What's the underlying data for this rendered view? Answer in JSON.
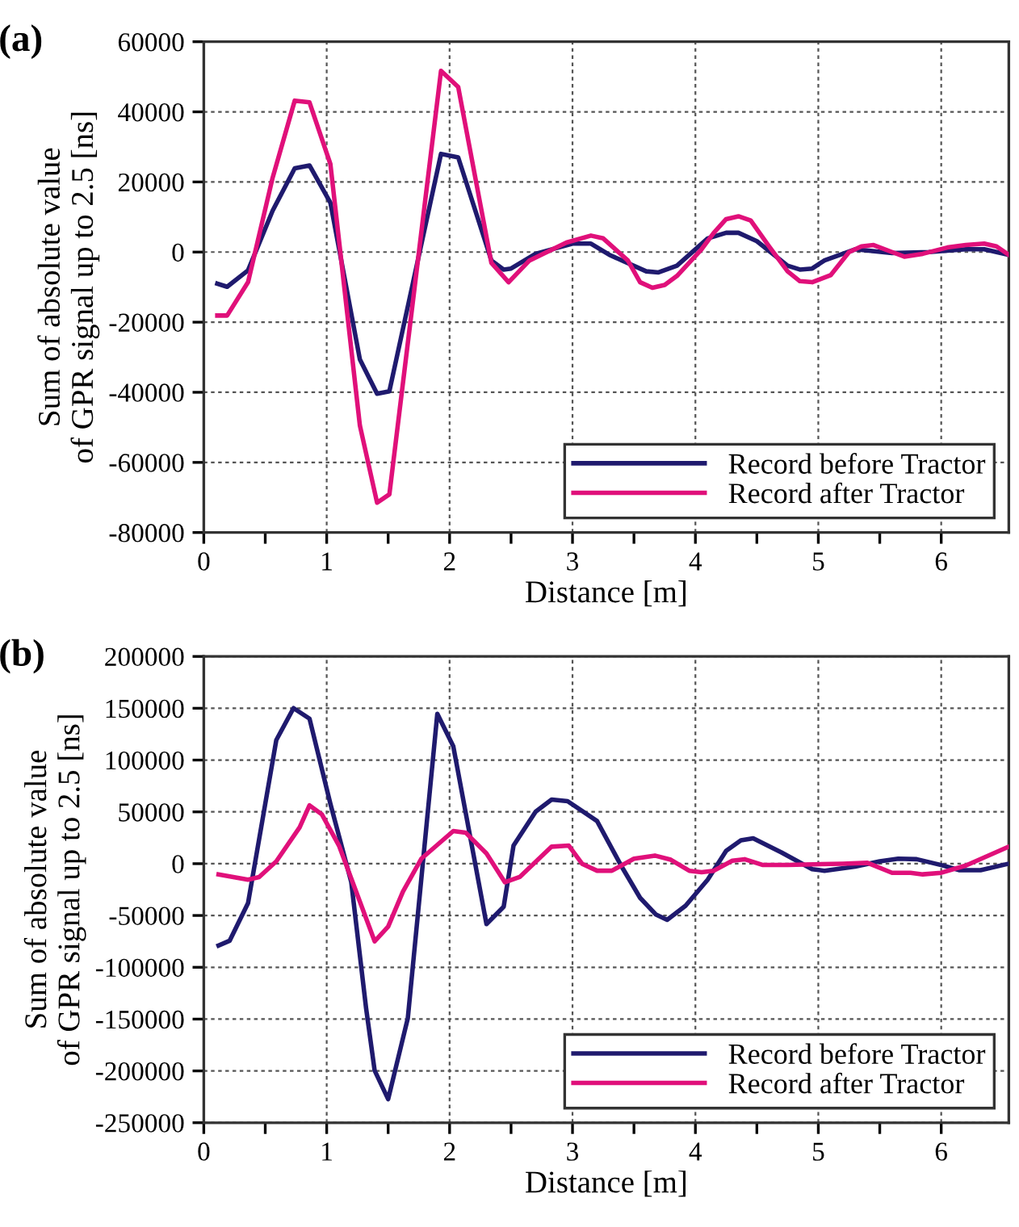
{
  "chart_data": [
    {
      "type": "line",
      "title": "(a)",
      "xlabel": "Distance [m]",
      "ylabel": "Sum of absolute value\nof GPR signal up to 2.5 [ns]",
      "xlim": [
        0,
        6.55
      ],
      "ylim": [
        -80000,
        60000
      ],
      "xticks": [
        0,
        {
          "value": 0.5,
          "label": null
        },
        1,
        {
          "value": 1.5,
          "label": null
        },
        2,
        {
          "value": 2.5,
          "label": null
        },
        3,
        {
          "value": 3.5,
          "label": null
        },
        4,
        {
          "value": 4.5,
          "label": null
        },
        5,
        {
          "value": 5.5,
          "label": null
        },
        6
      ],
      "yticks": [
        -80000,
        -60000,
        -40000,
        -20000,
        0,
        20000,
        40000,
        60000
      ],
      "grid": true,
      "legend": "bottom right",
      "line_style": "solid",
      "marker": "none",
      "series": [
        {
          "name": "Record before Tractor",
          "color": "#1f1a6e",
          "x": [
            0.11,
            0.19,
            0.36,
            0.56,
            0.74,
            0.86,
            1.03,
            1.27,
            1.41,
            1.51,
            1.93,
            2.07,
            2.34,
            2.44,
            2.5,
            2.7,
            3.0,
            3.15,
            3.3,
            3.6,
            3.7,
            3.85,
            4.1,
            4.25,
            4.35,
            4.5,
            4.75,
            4.85,
            4.95,
            5.05,
            5.3,
            5.6,
            5.9,
            6.2,
            6.35,
            6.55
          ],
          "values": [
            -9000,
            -9900,
            -5200,
            11800,
            23900,
            24700,
            14100,
            -30600,
            -40400,
            -39700,
            28000,
            27000,
            -2400,
            -5000,
            -4700,
            -500,
            2400,
            2400,
            -800,
            -5500,
            -5800,
            -3900,
            3900,
            5500,
            5500,
            3100,
            -3900,
            -5000,
            -4700,
            -2400,
            800,
            -300,
            0,
            800,
            800,
            -800
          ]
        },
        {
          "name": "Record after Tractor",
          "color": "#e0107a",
          "x": [
            0.11,
            0.19,
            0.36,
            0.56,
            0.74,
            0.86,
            1.03,
            1.27,
            1.41,
            1.51,
            1.93,
            2.07,
            2.34,
            2.48,
            2.65,
            2.95,
            3.15,
            3.25,
            3.45,
            3.55,
            3.65,
            3.75,
            3.85,
            4.05,
            4.15,
            4.25,
            4.35,
            4.45,
            4.6,
            4.75,
            4.85,
            4.95,
            5.1,
            5.25,
            5.35,
            5.45,
            5.6,
            5.7,
            5.85,
            6.05,
            6.2,
            6.35,
            6.45,
            6.55
          ],
          "values": [
            -18100,
            -18100,
            -8600,
            21200,
            43200,
            42700,
            25100,
            -49500,
            -71500,
            -69100,
            51700,
            47100,
            -3100,
            -8600,
            -2400,
            2700,
            4700,
            3900,
            -2400,
            -8600,
            -10200,
            -9400,
            -6800,
            800,
            5500,
            9400,
            10200,
            9000,
            1600,
            -5500,
            -8300,
            -8600,
            -6600,
            0,
            1600,
            2000,
            0,
            -1300,
            -500,
            1300,
            2000,
            2400,
            1600,
            -800
          ]
        }
      ]
    },
    {
      "type": "line",
      "title": "(b)",
      "xlabel": "Distance [m]",
      "ylabel": "Sum of absolute value\nof GPR signal up to 2.5 [ns]",
      "xlim": [
        0,
        6.55
      ],
      "ylim": [
        -250000,
        200000
      ],
      "xticks": [
        0,
        {
          "value": 0.5,
          "label": null
        },
        1,
        {
          "value": 1.5,
          "label": null
        },
        2,
        {
          "value": 2.5,
          "label": null
        },
        3,
        {
          "value": 3.5,
          "label": null
        },
        4,
        {
          "value": 4.5,
          "label": null
        },
        5,
        {
          "value": 5.5,
          "label": null
        },
        6
      ],
      "yticks": [
        -250000,
        -200000,
        -150000,
        -100000,
        -50000,
        0,
        50000,
        100000,
        150000,
        200000
      ],
      "grid": true,
      "legend": "bottom right",
      "line_style": "solid",
      "marker": "none",
      "series": [
        {
          "name": "Record before Tractor",
          "color": "#1f1a6e",
          "x": [
            0.12,
            0.21,
            0.36,
            0.59,
            0.73,
            0.86,
            1.03,
            1.2,
            1.32,
            1.39,
            1.5,
            1.66,
            1.9,
            2.03,
            2.3,
            2.44,
            2.52,
            2.7,
            2.83,
            2.96,
            3.2,
            3.4,
            3.55,
            3.68,
            3.77,
            3.92,
            4.1,
            4.25,
            4.37,
            4.47,
            4.7,
            4.95,
            5.05,
            5.3,
            5.5,
            5.65,
            5.8,
            6.0,
            6.15,
            6.32,
            6.55
          ],
          "values": [
            -79000,
            -74400,
            -38100,
            119300,
            150100,
            140000,
            57800,
            -17900,
            -139000,
            -199600,
            -227300,
            -149100,
            144600,
            113300,
            -58300,
            -41600,
            17400,
            50200,
            61800,
            60300,
            41100,
            -2800,
            -33000,
            -49200,
            -54200,
            -40600,
            -15400,
            12400,
            22500,
            24500,
            10800,
            -5300,
            -6800,
            -2800,
            2300,
            4800,
            4300,
            -1300,
            -6300,
            -6300,
            0
          ]
        },
        {
          "name": "Record after Tractor",
          "color": "#e0107a",
          "x": [
            0.12,
            0.36,
            0.45,
            0.59,
            0.78,
            0.86,
            0.96,
            1.1,
            1.39,
            1.5,
            1.62,
            1.77,
            2.03,
            2.13,
            2.3,
            2.45,
            2.57,
            2.83,
            2.97,
            3.08,
            3.2,
            3.32,
            3.5,
            3.67,
            3.8,
            3.95,
            4.05,
            4.15,
            4.3,
            4.4,
            4.55,
            4.75,
            5.2,
            5.4,
            5.6,
            5.75,
            5.85,
            6.0,
            6.2,
            6.55
          ],
          "values": [
            -10300,
            -15400,
            -12900,
            2300,
            35100,
            56300,
            47700,
            17400,
            -74900,
            -60800,
            -27000,
            4800,
            31500,
            30000,
            9800,
            -17900,
            -12900,
            16400,
            17400,
            -300,
            -6800,
            -6800,
            4800,
            7800,
            3800,
            -6800,
            -8300,
            -6800,
            2800,
            4300,
            -1300,
            -1300,
            0,
            800,
            -8800,
            -8800,
            -10300,
            -8800,
            -1800,
            16400
          ]
        }
      ]
    }
  ]
}
